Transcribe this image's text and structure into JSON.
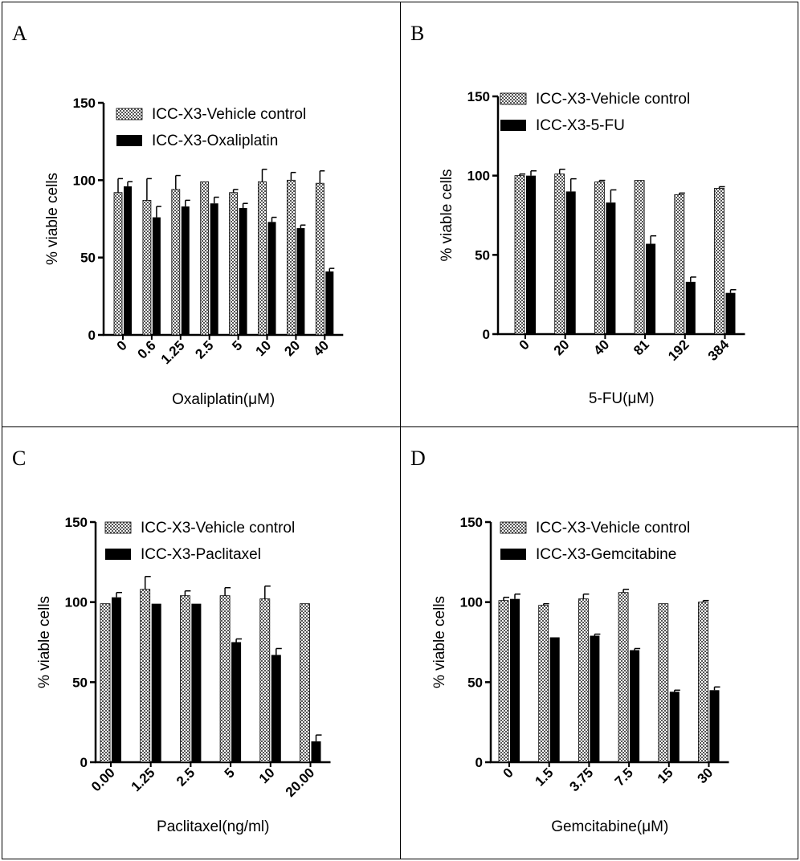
{
  "colors": {
    "treated": "#000000",
    "axis": "#000000",
    "background": "#ffffff"
  },
  "chart_data": [
    {
      "panel_label": "A",
      "type": "bar",
      "xlabel": "Oxaliplatin(μM)",
      "ylabel": "% viable cells",
      "ylim": [
        0,
        150
      ],
      "yticks": [
        "0",
        "50",
        "100",
        "150"
      ],
      "categories": [
        "0",
        "0.6",
        "1.25",
        "2.5",
        "5",
        "10",
        "20",
        "40"
      ],
      "legend_position": "top-right",
      "series": [
        {
          "name": "ICC-X3-Vehicle control",
          "pattern": "checker",
          "values": [
            92,
            87,
            94,
            99,
            92,
            99,
            100,
            98
          ],
          "errors": [
            9,
            14,
            9,
            0,
            2,
            8,
            5,
            8
          ]
        },
        {
          "name": "ICC-X3-Oxaliplatin",
          "pattern": "solid",
          "values": [
            96,
            76,
            83,
            85,
            82,
            73,
            69,
            41
          ],
          "errors": [
            3,
            7,
            4,
            4,
            3,
            3,
            2,
            2
          ]
        }
      ]
    },
    {
      "panel_label": "B",
      "type": "bar",
      "xlabel": "5-FU(μM)",
      "ylabel": "% viable cells",
      "ylim": [
        0,
        150
      ],
      "yticks": [
        "0",
        "50",
        "100",
        "150"
      ],
      "categories": [
        "0",
        "20",
        "40",
        "81",
        "192",
        "384"
      ],
      "legend_position": "top-right",
      "series": [
        {
          "name": "ICC-X3-Vehicle control",
          "pattern": "checker",
          "values": [
            100,
            101,
            96,
            97,
            88,
            92
          ],
          "errors": [
            1,
            3,
            1,
            0,
            1,
            1
          ]
        },
        {
          "name": "ICC-X3-5-FU",
          "pattern": "solid",
          "values": [
            100,
            90,
            83,
            57,
            33,
            26
          ],
          "errors": [
            3,
            8,
            8,
            5,
            3,
            2
          ]
        }
      ]
    },
    {
      "panel_label": "C",
      "type": "bar",
      "xlabel": "Paclitaxel(ng/ml)",
      "ylabel": "% viable cells",
      "ylim": [
        0,
        150
      ],
      "yticks": [
        "0",
        "50",
        "100",
        "150"
      ],
      "categories": [
        "0.00",
        "1.25",
        "2.5",
        "5",
        "10",
        "20.00"
      ],
      "legend_position": "top-right",
      "series": [
        {
          "name": "ICC-X3-Vehicle control",
          "pattern": "checker",
          "values": [
            99,
            108,
            104,
            104,
            102,
            99
          ],
          "errors": [
            0,
            8,
            3,
            5,
            8,
            0
          ]
        },
        {
          "name": "ICC-X3-Paclitaxel",
          "pattern": "solid",
          "values": [
            103,
            99,
            99,
            75,
            67,
            13
          ],
          "errors": [
            3,
            0,
            0,
            2,
            4,
            4
          ]
        }
      ]
    },
    {
      "panel_label": "D",
      "type": "bar",
      "xlabel": "Gemcitabine(μM)",
      "ylabel": "% viable cells",
      "ylim": [
        0,
        150
      ],
      "yticks": [
        "0",
        "50",
        "100",
        "150"
      ],
      "categories": [
        "0",
        "1.5",
        "3.75",
        "7.5",
        "15",
        "30"
      ],
      "legend_position": "top-right",
      "series": [
        {
          "name": "ICC-X3-Vehicle control",
          "pattern": "checker",
          "values": [
            101,
            98,
            102,
            106,
            99,
            100
          ],
          "errors": [
            2,
            1,
            3,
            2,
            0,
            1
          ]
        },
        {
          "name": "ICC-X3-Gemcitabine",
          "pattern": "solid",
          "values": [
            102,
            78,
            79,
            70,
            44,
            45
          ],
          "errors": [
            3,
            0,
            1,
            1,
            1,
            2
          ]
        }
      ]
    }
  ]
}
